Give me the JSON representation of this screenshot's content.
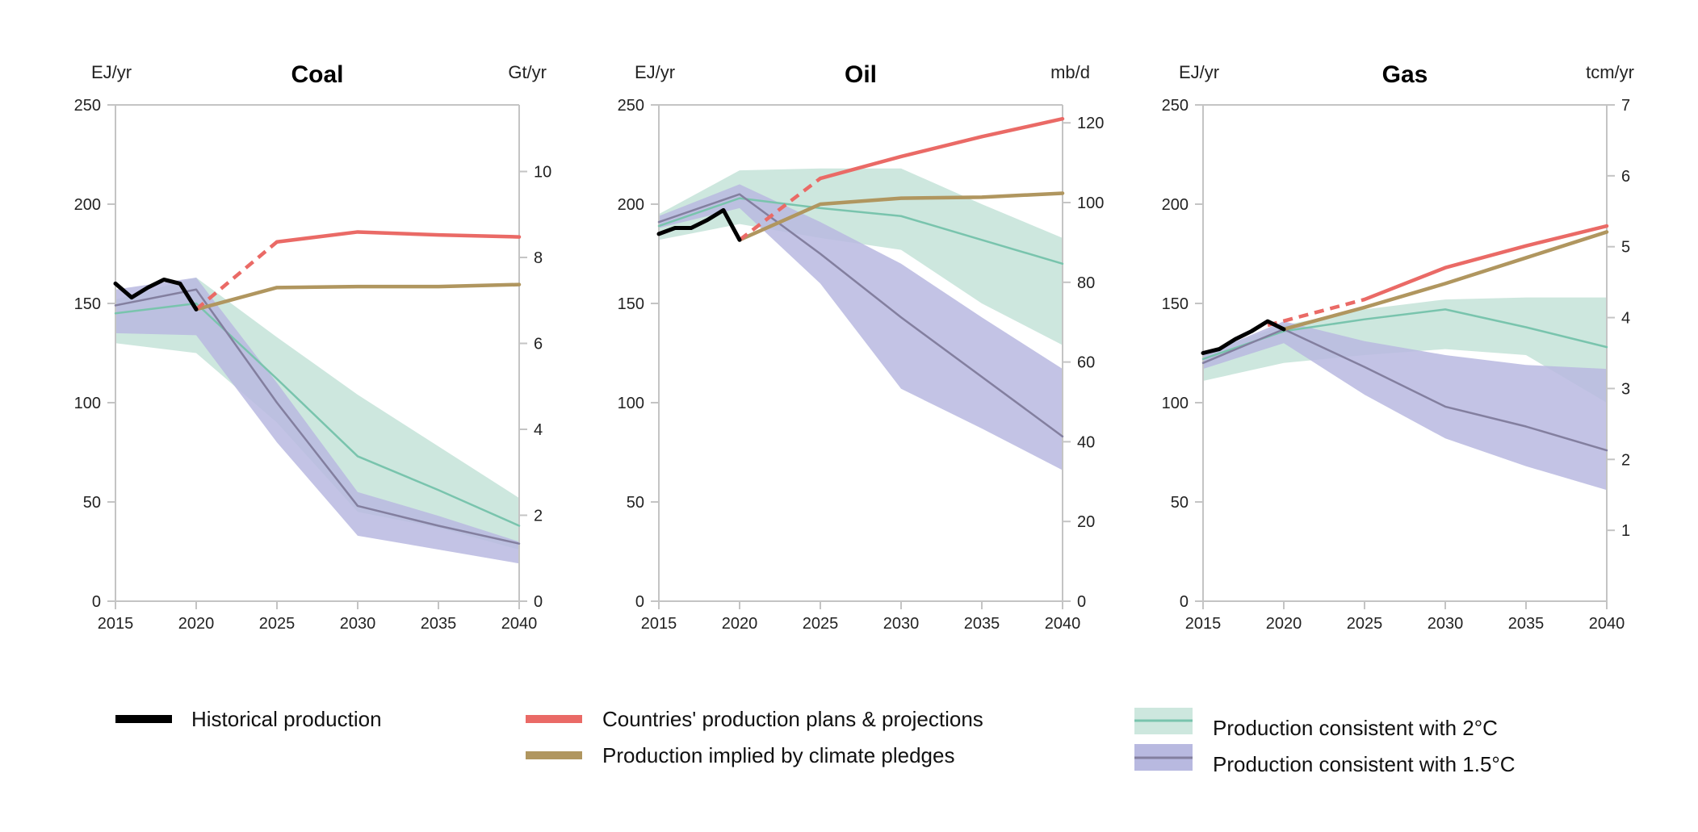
{
  "chart_data": [
    {
      "type": "line",
      "title": "Coal",
      "left_unit": "EJ/yr",
      "right_unit": "Gt/yr",
      "xlim": [
        2015,
        2040
      ],
      "ylim": [
        0,
        250
      ],
      "right_ylim": [
        0,
        11.55
      ],
      "x_ticks": [
        2015,
        2020,
        2025,
        2030,
        2035,
        2040
      ],
      "y_ticks": [
        0,
        50,
        100,
        150,
        200,
        250
      ],
      "right_ticks": [
        0,
        2,
        4,
        6,
        8,
        10
      ],
      "series": [
        {
          "key": "historical",
          "x": [
            2015,
            2016,
            2017,
            2018,
            2019,
            2020
          ],
          "y": [
            160,
            153,
            158,
            162,
            160,
            147
          ]
        },
        {
          "key": "plans_projected",
          "x": [
            2020,
            2025
          ],
          "y": [
            147,
            181
          ]
        },
        {
          "key": "plans",
          "x": [
            2025,
            2030,
            2035,
            2040
          ],
          "y": [
            181,
            186,
            184.5,
            183.5
          ]
        },
        {
          "key": "pledges",
          "x": [
            2020,
            2025,
            2030,
            2035,
            2040
          ],
          "y": [
            147,
            158,
            158.5,
            158.5,
            159.5
          ]
        },
        {
          "key": "two_degree",
          "x": [
            2015,
            2020,
            2025,
            2030,
            2035,
            2040
          ],
          "y": [
            145,
            150,
            112,
            73,
            56,
            38
          ]
        },
        {
          "key": "one_point_five",
          "x": [
            2015,
            2020,
            2025,
            2030,
            2035,
            2040
          ],
          "y": [
            149,
            157,
            100,
            48,
            38,
            29
          ]
        }
      ],
      "bands": [
        {
          "key": "two_degree",
          "x": [
            2015,
            2020,
            2025,
            2030,
            2035,
            2040
          ],
          "lower": [
            130,
            125,
            90,
            45,
            37,
            26
          ],
          "upper": [
            152,
            163,
            133,
            104,
            78,
            52
          ]
        },
        {
          "key": "one_point_five",
          "x": [
            2015,
            2020,
            2025,
            2030,
            2035,
            2040
          ],
          "lower": [
            135,
            134,
            80,
            33,
            26,
            19
          ],
          "upper": [
            157,
            163,
            110,
            55,
            43,
            30
          ]
        }
      ]
    },
    {
      "type": "line",
      "title": "Oil",
      "left_unit": "EJ/yr",
      "right_unit": "mb/d",
      "xlim": [
        2015,
        2040
      ],
      "ylim": [
        0,
        250
      ],
      "right_ylim": [
        0,
        124.5
      ],
      "x_ticks": [
        2015,
        2020,
        2025,
        2030,
        2035,
        2040
      ],
      "y_ticks": [
        0,
        50,
        100,
        150,
        200,
        250
      ],
      "right_ticks": [
        0,
        20,
        40,
        60,
        80,
        100,
        120
      ],
      "series": [
        {
          "key": "historical",
          "x": [
            2015,
            2016,
            2017,
            2018,
            2019,
            2020
          ],
          "y": [
            185,
            188,
            188,
            192,
            197,
            182
          ]
        },
        {
          "key": "plans_projected",
          "x": [
            2020,
            2025
          ],
          "y": [
            182,
            213
          ]
        },
        {
          "key": "plans",
          "x": [
            2025,
            2030,
            2035,
            2040
          ],
          "y": [
            213,
            224,
            234,
            243
          ]
        },
        {
          "key": "pledges",
          "x": [
            2020,
            2025,
            2030,
            2035,
            2040
          ],
          "y": [
            182,
            200,
            203,
            203.5,
            205.5
          ]
        },
        {
          "key": "two_degree",
          "x": [
            2015,
            2020,
            2025,
            2030,
            2035,
            2040
          ],
          "y": [
            189,
            203,
            198,
            194,
            182,
            170
          ]
        },
        {
          "key": "one_point_five",
          "x": [
            2015,
            2020,
            2025,
            2030,
            2035,
            2040
          ],
          "y": [
            191,
            205,
            175,
            143,
            113,
            83
          ]
        }
      ],
      "bands": [
        {
          "key": "two_degree",
          "x": [
            2015,
            2020,
            2025,
            2030,
            2035,
            2040
          ],
          "lower": [
            182,
            190,
            183,
            177,
            150,
            129
          ],
          "upper": [
            195,
            217,
            218,
            218,
            200,
            183
          ]
        },
        {
          "key": "one_point_five",
          "x": [
            2015,
            2020,
            2025,
            2030,
            2035,
            2040
          ],
          "lower": [
            188,
            198,
            160,
            107,
            87,
            66
          ],
          "upper": [
            194,
            210,
            191,
            170,
            143,
            117
          ]
        }
      ]
    },
    {
      "type": "line",
      "title": "Gas",
      "left_unit": "EJ/yr",
      "right_unit": "tcm/yr",
      "xlim": [
        2015,
        2040
      ],
      "ylim": [
        0,
        250
      ],
      "right_ylim": [
        0,
        7
      ],
      "x_ticks": [
        2015,
        2020,
        2025,
        2030,
        2035,
        2040
      ],
      "y_ticks": [
        0,
        50,
        100,
        150,
        200,
        250
      ],
      "right_ticks": [
        1,
        2,
        3,
        4,
        5,
        6,
        7
      ],
      "series": [
        {
          "key": "historical",
          "x": [
            2015,
            2016,
            2017,
            2018,
            2019,
            2020
          ],
          "y": [
            125,
            127,
            132,
            136,
            141,
            137
          ]
        },
        {
          "key": "plans_projected",
          "x": [
            2019,
            2025
          ],
          "y": [
            139,
            152
          ]
        },
        {
          "key": "plans",
          "x": [
            2025,
            2030,
            2035,
            2040
          ],
          "y": [
            152,
            168,
            179,
            189
          ]
        },
        {
          "key": "pledges",
          "x": [
            2020,
            2025,
            2030,
            2035,
            2040
          ],
          "y": [
            137,
            148,
            160,
            173,
            186
          ]
        },
        {
          "key": "two_degree",
          "x": [
            2015,
            2020,
            2025,
            2030,
            2035,
            2040
          ],
          "y": [
            122,
            136,
            142,
            147,
            138,
            128
          ]
        },
        {
          "key": "one_point_five",
          "x": [
            2015,
            2020,
            2025,
            2030,
            2035,
            2040
          ],
          "y": [
            120,
            137,
            118,
            98,
            88,
            76
          ]
        }
      ],
      "bands": [
        {
          "key": "two_degree",
          "x": [
            2015,
            2020,
            2025,
            2030,
            2035,
            2040
          ],
          "lower": [
            111,
            120,
            124,
            127,
            124,
            100
          ],
          "upper": [
            125,
            139,
            147,
            152,
            153,
            153
          ]
        },
        {
          "key": "one_point_five",
          "x": [
            2015,
            2020,
            2025,
            2030,
            2035,
            2040
          ],
          "lower": [
            117,
            130,
            104,
            82,
            68,
            56
          ],
          "upper": [
            124,
            141,
            131,
            124,
            119,
            117
          ]
        }
      ]
    }
  ],
  "legend": {
    "historical": "Historical production",
    "plans": "Countries' production plans & projections",
    "pledges": "Production implied by climate pledges",
    "two_degree": "Production consistent with 2°C",
    "one_point_five": "Production consistent with 1.5°C"
  },
  "colors": {
    "historical": "#000000",
    "plans": "#ea6a66",
    "pledges": "#b0965f",
    "two_degree_line": "#79c4ad",
    "two_degree_band": "#cde7de",
    "one_point_five_line": "#837f9f",
    "one_point_five_band": "#b8b9e0",
    "axis": "#c4c4c4"
  }
}
